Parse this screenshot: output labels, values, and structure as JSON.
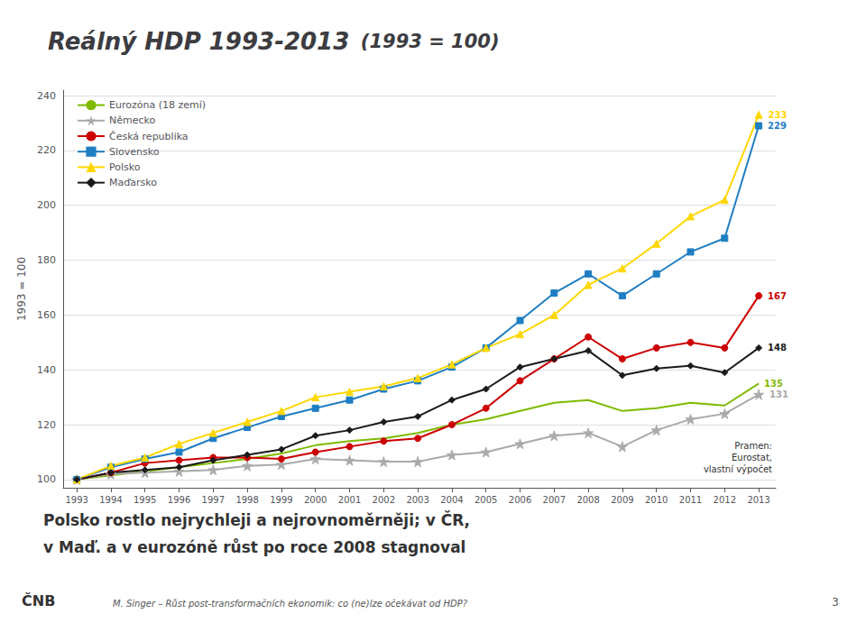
{
  "chart_data": {
    "type": "line",
    "title": "Reálný HDP 1993-2013",
    "title_note": "(1993 = 100)",
    "subtitle": [
      "Polsko rostlo nejrychleji a nejrovnoměrněji; v ČR,",
      "v Maď. a v eurozóně růst po roce 2008 stagnoval"
    ],
    "ylabel": "1993 = 100",
    "source": "Pramen:\nEurostat,\nvlastní výpočet",
    "footer": "M. Singer – Růst post-transformačních ekonomik: co (ne)lze očekávat od HDP?",
    "page_number": "3",
    "logo": "ČNB",
    "x": [
      1993,
      1994,
      1995,
      1996,
      1997,
      1998,
      1999,
      2000,
      2001,
      2002,
      2003,
      2004,
      2005,
      2006,
      2007,
      2008,
      2009,
      2010,
      2011,
      2012,
      2013
    ],
    "series": [
      {
        "name": "Eurozóna (18 zemí)",
        "color": "#7fba00",
        "marker": "none",
        "end_label": "135",
        "values": [
          100,
          101.5,
          103,
          104.5,
          106,
          107.5,
          109.5,
          112.5,
          114,
          115,
          117,
          120,
          122,
          125,
          128,
          129,
          125,
          126,
          128,
          127,
          135
        ]
      },
      {
        "name": "Německo",
        "color": "#aaaaaa",
        "marker": "star",
        "end_label": "131",
        "values": [
          100,
          102,
          102.5,
          103,
          103.5,
          105,
          105.5,
          107.5,
          107,
          106.5,
          106.5,
          109,
          110,
          113,
          116,
          117,
          112,
          118,
          122,
          124,
          131
        ]
      },
      {
        "name": "Česká republika",
        "color": "#cc0000",
        "marker": "circle",
        "end_label": "167",
        "values": [
          100,
          102.5,
          106,
          107,
          108,
          108,
          107.5,
          110,
          112,
          114,
          115,
          120,
          126,
          136,
          144,
          152,
          144,
          148,
          150,
          148,
          167
        ]
      },
      {
        "name": "Slovensko",
        "color": "#1f7ec2",
        "marker": "square",
        "end_label": "229",
        "values": [
          100,
          104.5,
          107.5,
          110,
          115,
          119,
          123,
          126,
          129,
          133,
          136,
          141,
          148,
          158,
          168,
          175,
          167,
          175,
          183,
          188,
          229
        ]
      },
      {
        "name": "Polsko",
        "color": "#ffd700",
        "marker": "triangle",
        "end_label": "233",
        "values": [
          100,
          105,
          108,
          113,
          117,
          121,
          125,
          130,
          132,
          134,
          137,
          142,
          148,
          153,
          160,
          171,
          177,
          186,
          196,
          202,
          233
        ]
      },
      {
        "name": "Maďarsko",
        "color": "#1a1a1a",
        "marker": "diamond",
        "end_label": "148",
        "values": [
          100,
          102.5,
          103.5,
          104.5,
          107,
          109,
          111,
          116,
          118,
          121,
          123,
          129,
          133,
          141,
          144,
          147,
          138,
          140.5,
          141.5,
          139,
          148
        ]
      }
    ],
    "xlim": [
      1992.6,
      2013.5
    ],
    "xticks": [
      1993,
      1994,
      1995,
      1996,
      1997,
      1998,
      1999,
      2000,
      2001,
      2002,
      2003,
      2004,
      2005,
      2006,
      2007,
      2008,
      2009,
      2010,
      2011,
      2012,
      2013
    ],
    "ylim": [
      97,
      242
    ],
    "yticks": [
      100,
      120,
      140,
      160,
      180,
      200,
      220,
      240
    ],
    "grid": true,
    "legend": "upper left"
  }
}
